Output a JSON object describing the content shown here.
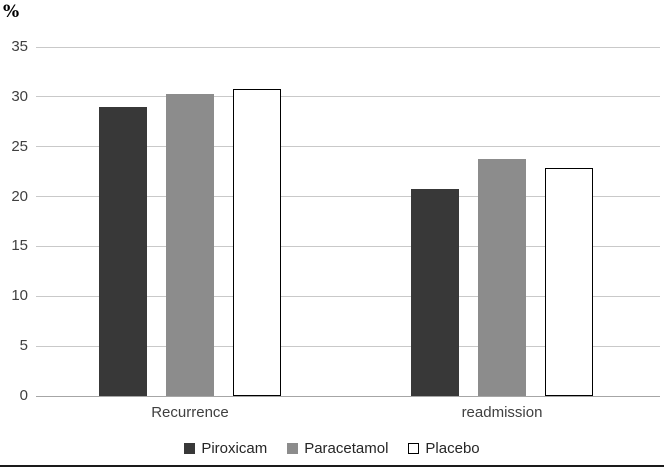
{
  "chart_data": {
    "type": "bar",
    "title": "",
    "ylabel": "%",
    "xlabel": "",
    "categories": [
      "Recurrence",
      "readmission"
    ],
    "series": [
      {
        "name": "Piroxicam",
        "color": "#383838",
        "border": "#383838",
        "values": [
          29.0,
          20.8
        ]
      },
      {
        "name": "Paracetamol",
        "color": "#8c8c8c",
        "border": "#8c8c8c",
        "values": [
          30.3,
          23.8
        ]
      },
      {
        "name": "Placebo",
        "color": "#ffffff",
        "border": "#000000",
        "values": [
          30.8,
          22.9
        ]
      }
    ],
    "ylim": [
      0,
      35
    ],
    "yticks": [
      0,
      5,
      10,
      15,
      20,
      25,
      30,
      35
    ],
    "grid": true,
    "legend_position": "bottom",
    "gridline_color": "#c9c9c9"
  }
}
